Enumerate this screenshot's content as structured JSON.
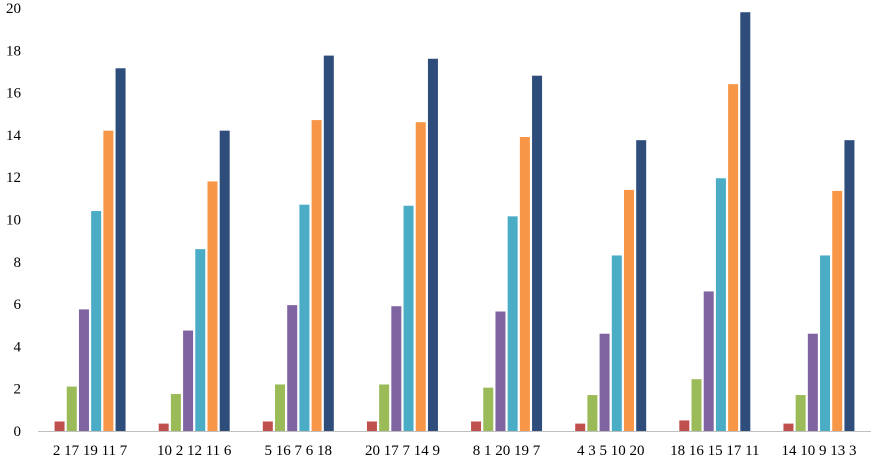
{
  "chart_data": {
    "type": "bar",
    "title": "",
    "xlabel": "",
    "ylabel": "",
    "ylim": [
      0,
      20
    ],
    "yticks": [
      0,
      2,
      4,
      6,
      8,
      10,
      12,
      14,
      16,
      18,
      20
    ],
    "grid": false,
    "legend": "none",
    "categories": [
      "2 17 19 11 7",
      "10 2 12 11 6",
      "5 16 7 6 18",
      "20 17 7 14 9",
      "8 1 20 19 7",
      "4 3 5 10 20",
      "18 16 15 17 11",
      "14 10 9 13 3"
    ],
    "series": [
      {
        "color": "#c0504d",
        "values": [
          0.45,
          0.35,
          0.45,
          0.45,
          0.45,
          0.35,
          0.5,
          0.35
        ]
      },
      {
        "color": "#9bbb59",
        "values": [
          2.1,
          1.75,
          2.2,
          2.2,
          2.05,
          1.7,
          2.45,
          1.7
        ]
      },
      {
        "color": "#8064a2",
        "values": [
          5.75,
          4.75,
          5.95,
          5.9,
          5.65,
          4.6,
          6.6,
          4.6
        ]
      },
      {
        "color": "#4bacc6",
        "values": [
          10.4,
          8.6,
          10.7,
          10.65,
          10.15,
          8.3,
          11.95,
          8.3
        ]
      },
      {
        "color": "#f79646",
        "values": [
          14.2,
          11.8,
          14.7,
          14.6,
          13.9,
          11.4,
          16.4,
          11.35
        ]
      },
      {
        "color": "#2e4d7b",
        "values": [
          17.15,
          14.2,
          17.75,
          17.6,
          16.8,
          13.75,
          19.8,
          13.75
        ]
      }
    ]
  }
}
